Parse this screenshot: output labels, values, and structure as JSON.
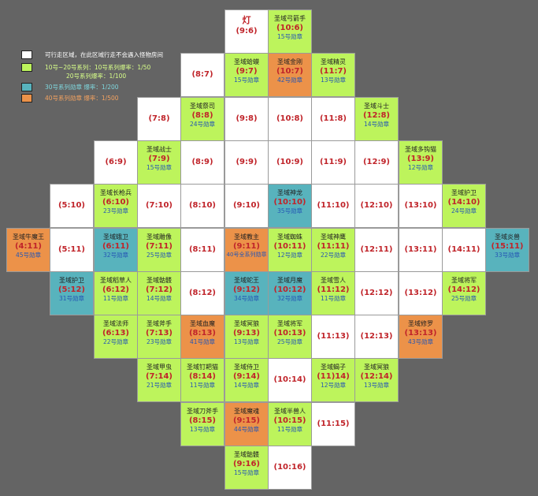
{
  "colors": {
    "white": "#ffffff",
    "green": "#bdf45c",
    "blue": "#58b3bd",
    "orange": "#ec9249",
    "background": "#646464",
    "coordinate_text": "#c0242a",
    "medal_text": "#2556b4"
  },
  "legend": [
    {
      "color": "white",
      "text": "可行走区域，在此区域行走不会遇入怪物房间",
      "text_color": "#ffffff"
    },
    {
      "color": "green",
      "text": "10号~20号系列：10号系列爆率：1/50",
      "text2": "20号系列爆率：1/100",
      "text_color": "#d8ff8a"
    },
    {
      "color": "blue",
      "text": "30号系列勋章 爆率：1/200",
      "text_color": "#7fd6dd"
    },
    {
      "color": "orange",
      "text": "40号系列勋章 爆率：1/500",
      "text_color": "#f3a260"
    }
  ],
  "cells": [
    {
      "col": 9,
      "row": 6,
      "type": "lamp",
      "name": "灯",
      "coord": "(9:6)",
      "sub": ""
    },
    {
      "col": 10,
      "row": 6,
      "type": "green",
      "name": "圣域弓箭手",
      "coord": "(10:6)",
      "sub": "15号勋章"
    },
    {
      "col": 8,
      "row": 7,
      "type": "white",
      "name": "",
      "coord": "(8:7)",
      "sub": ""
    },
    {
      "col": 9,
      "row": 7,
      "type": "green",
      "name": "圣域蛤蟆",
      "coord": "(9:7)",
      "sub": "15号勋章"
    },
    {
      "col": 10,
      "row": 7,
      "type": "orange",
      "name": "圣域金刚",
      "coord": "(10:7)",
      "sub": "42号勋章"
    },
    {
      "col": 11,
      "row": 7,
      "type": "green",
      "name": "圣域精灵",
      "coord": "(11:7)",
      "sub": "13号勋章"
    },
    {
      "col": 7,
      "row": 8,
      "type": "white",
      "name": "",
      "coord": "(7:8)",
      "sub": ""
    },
    {
      "col": 8,
      "row": 8,
      "type": "green",
      "name": "圣域祭司",
      "coord": "(8:8)",
      "sub": "24号勋章"
    },
    {
      "col": 9,
      "row": 8,
      "type": "white",
      "name": "",
      "coord": "(9:8)",
      "sub": ""
    },
    {
      "col": 10,
      "row": 8,
      "type": "white",
      "name": "",
      "coord": "(10:8)",
      "sub": ""
    },
    {
      "col": 11,
      "row": 8,
      "type": "white",
      "name": "",
      "coord": "(11:8)",
      "sub": ""
    },
    {
      "col": 12,
      "row": 8,
      "type": "green",
      "name": "圣域斗士",
      "coord": "(12:8)",
      "sub": "14号勋章"
    },
    {
      "col": 6,
      "row": 9,
      "type": "white",
      "name": "",
      "coord": "(6:9)",
      "sub": ""
    },
    {
      "col": 7,
      "row": 9,
      "type": "green",
      "name": "圣域战士",
      "coord": "(7:9)",
      "sub": "15号勋章"
    },
    {
      "col": 8,
      "row": 9,
      "type": "white",
      "name": "",
      "coord": "(8:9)",
      "sub": ""
    },
    {
      "col": 9,
      "row": 9,
      "type": "white",
      "name": "",
      "coord": "(9:9)",
      "sub": ""
    },
    {
      "col": 10,
      "row": 9,
      "type": "white",
      "name": "",
      "coord": "(10:9)",
      "sub": ""
    },
    {
      "col": 11,
      "row": 9,
      "type": "white",
      "name": "",
      "coord": "(11:9)",
      "sub": ""
    },
    {
      "col": 12,
      "row": 9,
      "type": "white",
      "name": "",
      "coord": "(12:9)",
      "sub": ""
    },
    {
      "col": 13,
      "row": 9,
      "type": "green",
      "name": "圣域多钩猫",
      "coord": "(13:9)",
      "sub": "12号勋章"
    },
    {
      "col": 5,
      "row": 10,
      "type": "white",
      "name": "",
      "coord": "(5:10)",
      "sub": ""
    },
    {
      "col": 6,
      "row": 10,
      "type": "green",
      "name": "圣域长枪兵",
      "coord": "(6:10)",
      "sub": "23号勋章"
    },
    {
      "col": 7,
      "row": 10,
      "type": "white",
      "name": "",
      "coord": "(7:10)",
      "sub": ""
    },
    {
      "col": 8,
      "row": 10,
      "type": "white",
      "name": "",
      "coord": "(8:10)",
      "sub": ""
    },
    {
      "col": 9,
      "row": 10,
      "type": "white",
      "name": "",
      "coord": "(9:10)",
      "sub": ""
    },
    {
      "col": 10,
      "row": 10,
      "type": "blue",
      "name": "圣域神龙",
      "coord": "(10:10)",
      "sub": "35号勋章"
    },
    {
      "col": 11,
      "row": 10,
      "type": "white",
      "name": "",
      "coord": "(11:10)",
      "sub": ""
    },
    {
      "col": 12,
      "row": 10,
      "type": "white",
      "name": "",
      "coord": "(12:10)",
      "sub": ""
    },
    {
      "col": 13,
      "row": 10,
      "type": "white",
      "name": "",
      "coord": "(13:10)",
      "sub": ""
    },
    {
      "col": 14,
      "row": 10,
      "type": "green",
      "name": "圣域护卫",
      "coord": "(14:10)",
      "sub": "24号勋章"
    },
    {
      "col": 4,
      "row": 11,
      "type": "orange",
      "name": "圣域牛魔王",
      "coord": "(4:11)",
      "sub": "45号勋章"
    },
    {
      "col": 5,
      "row": 11,
      "type": "white",
      "name": "",
      "coord": "(5:11)",
      "sub": ""
    },
    {
      "col": 6,
      "row": 11,
      "type": "blue",
      "name": "圣域蛾卫",
      "coord": "(6:11)",
      "sub": "32号勋章"
    },
    {
      "col": 7,
      "row": 11,
      "type": "green",
      "name": "圣域雕像",
      "coord": "(7:11)",
      "sub": "25号勋章"
    },
    {
      "col": 8,
      "row": 11,
      "type": "white",
      "name": "",
      "coord": "(8:11)",
      "sub": ""
    },
    {
      "col": 9,
      "row": 11,
      "type": "orange",
      "name": "圣域教主",
      "coord": "(9:11)",
      "sub": "40号全系列勋章",
      "wide": true
    },
    {
      "col": 10,
      "row": 11,
      "type": "green",
      "name": "圣域蜘蛛",
      "coord": "(10:11)",
      "sub": "12号勋章"
    },
    {
      "col": 11,
      "row": 11,
      "type": "green",
      "name": "圣域神鹰",
      "coord": "(11:11)",
      "sub": "22号勋章"
    },
    {
      "col": 12,
      "row": 11,
      "type": "white",
      "name": "",
      "coord": "(12:11)",
      "sub": ""
    },
    {
      "col": 13,
      "row": 11,
      "type": "white",
      "name": "",
      "coord": "(13:11)",
      "sub": ""
    },
    {
      "col": 14,
      "row": 11,
      "type": "white",
      "name": "",
      "coord": "(14:11)",
      "sub": ""
    },
    {
      "col": 15,
      "row": 11,
      "type": "blue",
      "name": "圣域炎兽",
      "coord": "(15:11)",
      "sub": "33号勋章"
    },
    {
      "col": 5,
      "row": 12,
      "type": "blue",
      "name": "圣域护卫",
      "coord": "(5:12)",
      "sub": "31号勋章"
    },
    {
      "col": 6,
      "row": 12,
      "type": "green",
      "name": "圣域稻草人",
      "coord": "(6:12)",
      "sub": "11号勋章"
    },
    {
      "col": 7,
      "row": 12,
      "type": "green",
      "name": "圣域骷髅",
      "coord": "(7:12)",
      "sub": "14号勋章"
    },
    {
      "col": 8,
      "row": 12,
      "type": "white",
      "name": "",
      "coord": "(8:12)",
      "sub": ""
    },
    {
      "col": 9,
      "row": 12,
      "type": "blue",
      "name": "圣域蛇王",
      "coord": "(9:12)",
      "sub": "34号勋章"
    },
    {
      "col": 10,
      "row": 12,
      "type": "blue",
      "name": "圣域月魔",
      "coord": "(10:12)",
      "sub": "32号勋章"
    },
    {
      "col": 11,
      "row": 12,
      "type": "green",
      "name": "圣域雪人",
      "coord": "(11:12)",
      "sub": "11号勋章"
    },
    {
      "col": 12,
      "row": 12,
      "type": "white",
      "name": "",
      "coord": "(12:12)",
      "sub": ""
    },
    {
      "col": 13,
      "row": 12,
      "type": "white",
      "name": "",
      "coord": "(13:12)",
      "sub": ""
    },
    {
      "col": 14,
      "row": 12,
      "type": "green",
      "name": "圣域将军",
      "coord": "(14:12)",
      "sub": "25号勋章"
    },
    {
      "col": 6,
      "row": 13,
      "type": "green",
      "name": "圣域法师",
      "coord": "(6:13)",
      "sub": "22号勋章"
    },
    {
      "col": 7,
      "row": 13,
      "type": "green",
      "name": "圣域斧手",
      "coord": "(7:13)",
      "sub": "23号勋章"
    },
    {
      "col": 8,
      "row": 13,
      "type": "orange",
      "name": "圣域血魔",
      "coord": "(8:13)",
      "sub": "41号勋章"
    },
    {
      "col": 9,
      "row": 13,
      "type": "green",
      "name": "圣域冥狼",
      "coord": "(9:13)",
      "sub": "13号勋章"
    },
    {
      "col": 10,
      "row": 13,
      "type": "green",
      "name": "圣域将军",
      "coord": "(10:13)",
      "sub": "25号勋章"
    },
    {
      "col": 11,
      "row": 13,
      "type": "white",
      "name": "",
      "coord": "(11:13)",
      "sub": ""
    },
    {
      "col": 12,
      "row": 13,
      "type": "white",
      "name": "",
      "coord": "(12:13)",
      "sub": ""
    },
    {
      "col": 13,
      "row": 13,
      "type": "orange",
      "name": "圣域修罗",
      "coord": "(13:13)",
      "sub": "43号勋章"
    },
    {
      "col": 7,
      "row": 14,
      "type": "green",
      "name": "圣域甲虫",
      "coord": "(7:14)",
      "sub": "21号勋章"
    },
    {
      "col": 8,
      "row": 14,
      "type": "green",
      "name": "圣域钉耙猫",
      "coord": "(8:14)",
      "sub": "11号勋章"
    },
    {
      "col": 9,
      "row": 14,
      "type": "green",
      "name": "圣域侍卫",
      "coord": "(9:14)",
      "sub": "14号勋章"
    },
    {
      "col": 10,
      "row": 14,
      "type": "white",
      "name": "",
      "coord": "(10:14)",
      "sub": ""
    },
    {
      "col": 11,
      "row": 14,
      "type": "green",
      "name": "圣域蝎子",
      "coord": "(11)14)",
      "sub": "12号勋章"
    },
    {
      "col": 12,
      "row": 14,
      "type": "green",
      "name": "圣域冥狼",
      "coord": "(12:14)",
      "sub": "13号勋章"
    },
    {
      "col": 8,
      "row": 15,
      "type": "green",
      "name": "圣域刀斧手",
      "coord": "(8:15)",
      "sub": "13号勋章"
    },
    {
      "col": 9,
      "row": 15,
      "type": "orange",
      "name": "圣域魔魂",
      "coord": "(9:15)",
      "sub": "44号勋章"
    },
    {
      "col": 10,
      "row": 15,
      "type": "green",
      "name": "圣域半兽人",
      "coord": "(10:15)",
      "sub": "11号勋章"
    },
    {
      "col": 11,
      "row": 15,
      "type": "white",
      "name": "",
      "coord": "(11:15)",
      "sub": ""
    },
    {
      "col": 9,
      "row": 16,
      "type": "green",
      "name": "圣域骷髅",
      "coord": "(9:16)",
      "sub": "15号勋章"
    },
    {
      "col": 10,
      "row": 16,
      "type": "white",
      "name": "",
      "coord": "(10:16)",
      "sub": ""
    }
  ]
}
